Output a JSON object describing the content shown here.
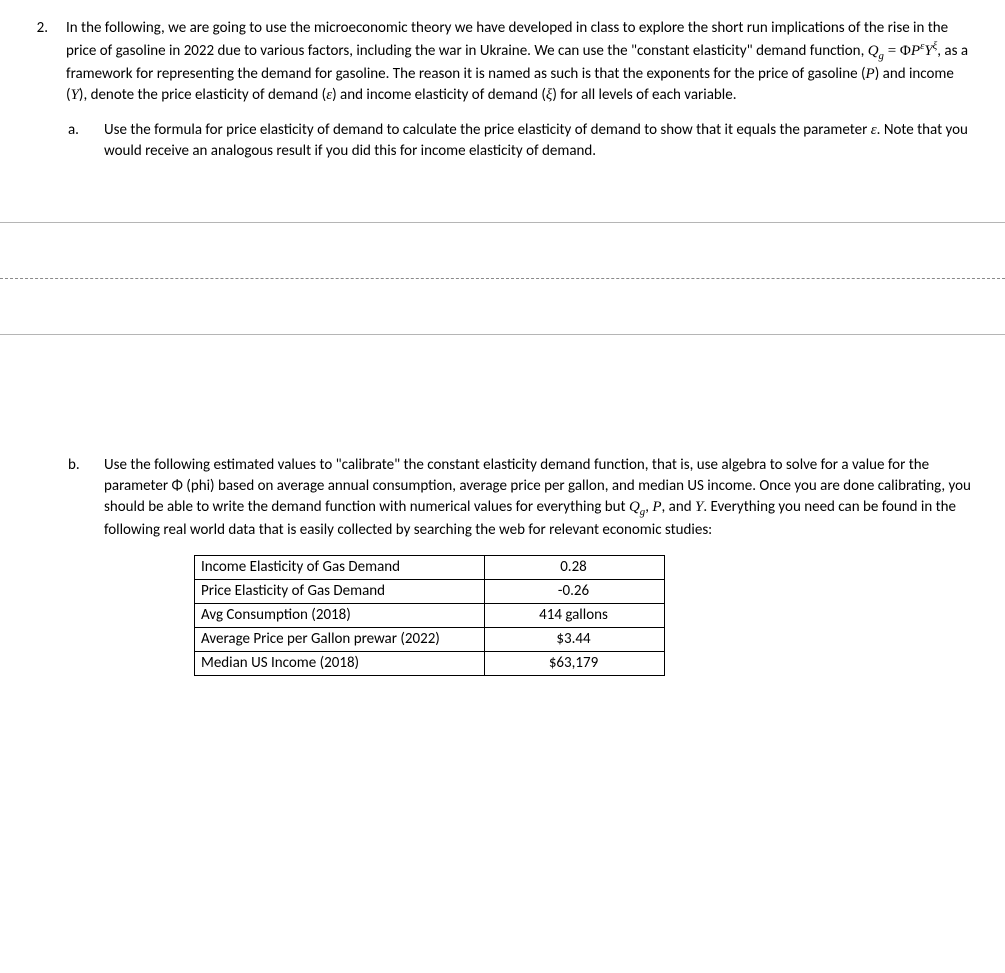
{
  "question": {
    "number": "2.",
    "intro_pre": "In the following, we are going to use the microeconomic theory we have developed in class to explore the short run implications of the rise in the price of gasoline in 2022 due to various factors, including the war in Ukraine. We can use the \"constant elasticity\" demand function, ",
    "formula": {
      "Q": "Q",
      "g": "g",
      "eq": " = ",
      "phi": "Φ",
      "P": "P",
      "eps": "ε",
      "Y": "Y",
      "xi": "ξ"
    },
    "intro_post_1": ", as a framework for representing the demand for gasoline. The reason it is named as such is that the exponents for the price of gasoline (",
    "P_ital": "P",
    "intro_post_2": ") and income (",
    "Y_ital": "Y",
    "intro_post_3": "), denote the price elasticity of demand (",
    "eps_ital": "ε",
    "intro_post_4": ") and income elasticity of demand (",
    "xi_ital": "ξ",
    "intro_post_5": ") for all levels of each variable."
  },
  "part_a": {
    "letter": "a.",
    "text_1": "Use the formula for price elasticity of demand to calculate the price elasticity of demand to show that it equals the parameter ",
    "eps": "ε",
    "text_2": ". Note that you would receive an analogous result if you did this for income elasticity of demand."
  },
  "part_b": {
    "letter": "b.",
    "text_1": "Use the following estimated values to \"calibrate\" the constant elasticity demand function, that is, use algebra to solve for a value for the parameter Φ (phi) based on average annual consumption, average price per gallon, and median US income. Once you are done calibrating, you should be able to write the demand function with numerical values for everything but ",
    "Q": "Q",
    "g": "g",
    "comma1": ", ",
    "P": "P",
    "comma2": ", and ",
    "Y": "Y",
    "text_2": ". Everything you need can be found in the following real world data that is easily collected by searching the web for relevant economic studies:"
  },
  "table": {
    "rows": [
      {
        "label": "Income Elasticity of Gas Demand",
        "value": "0.28"
      },
      {
        "label": "Price Elasticity of Gas Demand",
        "value": "-0.26"
      },
      {
        "label": "Avg Consumption (2018)",
        "value": "414 gallons"
      },
      {
        "label": "Average Price per Gallon prewar (2022)",
        "value": "$3.44"
      },
      {
        "label": "Median US Income (2018)",
        "value": "$63,179"
      }
    ]
  }
}
